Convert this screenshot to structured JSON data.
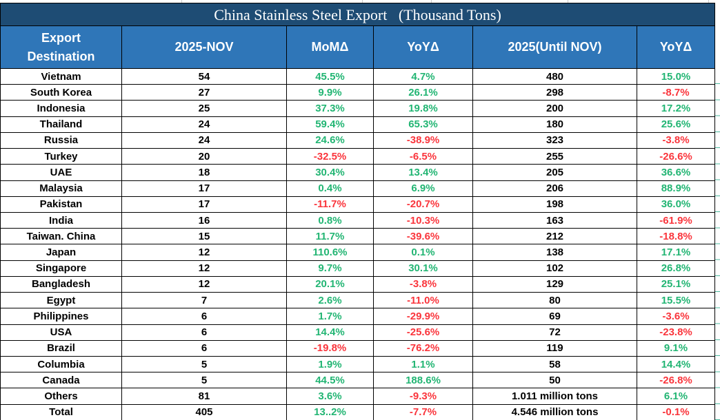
{
  "title": "China Stainless Steel Export   (Thousand Tons)",
  "colors": {
    "title_bg": "#1E4C74",
    "header_bg": "#2F76B8",
    "positive_text": "#22B573",
    "negative_text": "#FA353C",
    "marker_green": "#2E9E44",
    "grid_border": "#000000"
  },
  "columns": [
    {
      "label": "Export\nDestination"
    },
    {
      "label": "2025-NOV"
    },
    {
      "label": "MoMΔ"
    },
    {
      "label": "YoYΔ"
    },
    {
      "label": "2025(Until NOV)"
    },
    {
      "label": "YoYΔ"
    }
  ],
  "rows": [
    {
      "destination": "Vietnam",
      "nov": "54",
      "mom": "45.5%",
      "yoy": "4.7%",
      "ytd": "480",
      "ytd_yoy": "15.0%",
      "marker": false
    },
    {
      "destination": "South Korea",
      "nov": "27",
      "mom": "9.9%",
      "yoy": "26.1%",
      "ytd": "298",
      "ytd_yoy": "-8.7%",
      "marker": false
    },
    {
      "destination": "Indonesia",
      "nov": "25",
      "mom": "37.3%",
      "yoy": "19.8%",
      "ytd": "200",
      "ytd_yoy": "17.2%",
      "marker": false
    },
    {
      "destination": "Thailand",
      "nov": "24",
      "mom": "59.4%",
      "yoy": "65.3%",
      "ytd": "180",
      "ytd_yoy": "25.6%",
      "marker": false
    },
    {
      "destination": "Russia",
      "nov": "24",
      "mom": "24.6%",
      "yoy": "-38.9%",
      "ytd": "323",
      "ytd_yoy": "-3.8%",
      "marker": true
    },
    {
      "destination": "Turkey",
      "nov": "20",
      "mom": "-32.5%",
      "yoy": "-6.5%",
      "ytd": "255",
      "ytd_yoy": "-26.6%",
      "marker": false
    },
    {
      "destination": "UAE",
      "nov": "18",
      "mom": "30.4%",
      "yoy": "13.4%",
      "ytd": "205",
      "ytd_yoy": "36.6%",
      "marker": false
    },
    {
      "destination": "Malaysia",
      "nov": "17",
      "mom": "0.4%",
      "yoy": "6.9%",
      "ytd": "206",
      "ytd_yoy": "88.9%",
      "marker": false
    },
    {
      "destination": "Pakistan",
      "nov": "17",
      "mom": "-11.7%",
      "yoy": "-20.7%",
      "ytd": "198",
      "ytd_yoy": "36.0%",
      "marker": false
    },
    {
      "destination": "India",
      "nov": "16",
      "mom": "0.8%",
      "yoy": "-10.3%",
      "ytd": "163",
      "ytd_yoy": "-61.9%",
      "marker": false
    },
    {
      "destination": "Taiwan. China",
      "nov": "15",
      "mom": "11.7%",
      "yoy": "-39.6%",
      "ytd": "212",
      "ytd_yoy": "-18.8%",
      "marker": true
    },
    {
      "destination": "Japan",
      "nov": "12",
      "mom": "110.6%",
      "yoy": "0.1%",
      "ytd": "138",
      "ytd_yoy": "17.1%",
      "marker": false
    },
    {
      "destination": "Singapore",
      "nov": "12",
      "mom": "9.7%",
      "yoy": "30.1%",
      "ytd": "102",
      "ytd_yoy": "26.8%",
      "marker": false
    },
    {
      "destination": "Bangladesh",
      "nov": "12",
      "mom": "20.1%",
      "yoy": "-3.8%",
      "ytd": "129",
      "ytd_yoy": "25.1%",
      "marker": false
    },
    {
      "destination": "Egypt",
      "nov": "7",
      "mom": "2.6%",
      "yoy": "-11.0%",
      "ytd": "80",
      "ytd_yoy": "15.5%",
      "marker": false
    },
    {
      "destination": "Philippines",
      "nov": "6",
      "mom": "1.7%",
      "yoy": "-29.9%",
      "ytd": "69",
      "ytd_yoy": "-3.6%",
      "marker": false
    },
    {
      "destination": "USA",
      "nov": "6",
      "mom": "14.4%",
      "yoy": "-25.6%",
      "ytd": "72",
      "ytd_yoy": "-23.8%",
      "marker": false
    },
    {
      "destination": "Brazil",
      "nov": "6",
      "mom": "-19.8%",
      "yoy": "-76.2%",
      "ytd": "119",
      "ytd_yoy": "9.1%",
      "marker": false
    },
    {
      "destination": "Columbia",
      "nov": "5",
      "mom": "1.9%",
      "yoy": "1.1%",
      "ytd": "58",
      "ytd_yoy": "14.4%",
      "marker": false
    },
    {
      "destination": "Canada",
      "nov": "5",
      "mom": "44.5%",
      "yoy": "188.6%",
      "ytd": "50",
      "ytd_yoy": "-26.8%",
      "marker": false
    },
    {
      "destination": "Others",
      "nov": "81",
      "mom": "3.6%",
      "yoy": "-9.3%",
      "ytd": "1.011 million tons",
      "ytd_yoy": "6.1%",
      "marker": false
    },
    {
      "destination": "Total",
      "nov": "405",
      "mom": "13..2%",
      "yoy": "-7.7%",
      "ytd": "4.546 million tons",
      "ytd_yoy": "-0.1%",
      "marker": false,
      "bottom_marker": true
    }
  ]
}
